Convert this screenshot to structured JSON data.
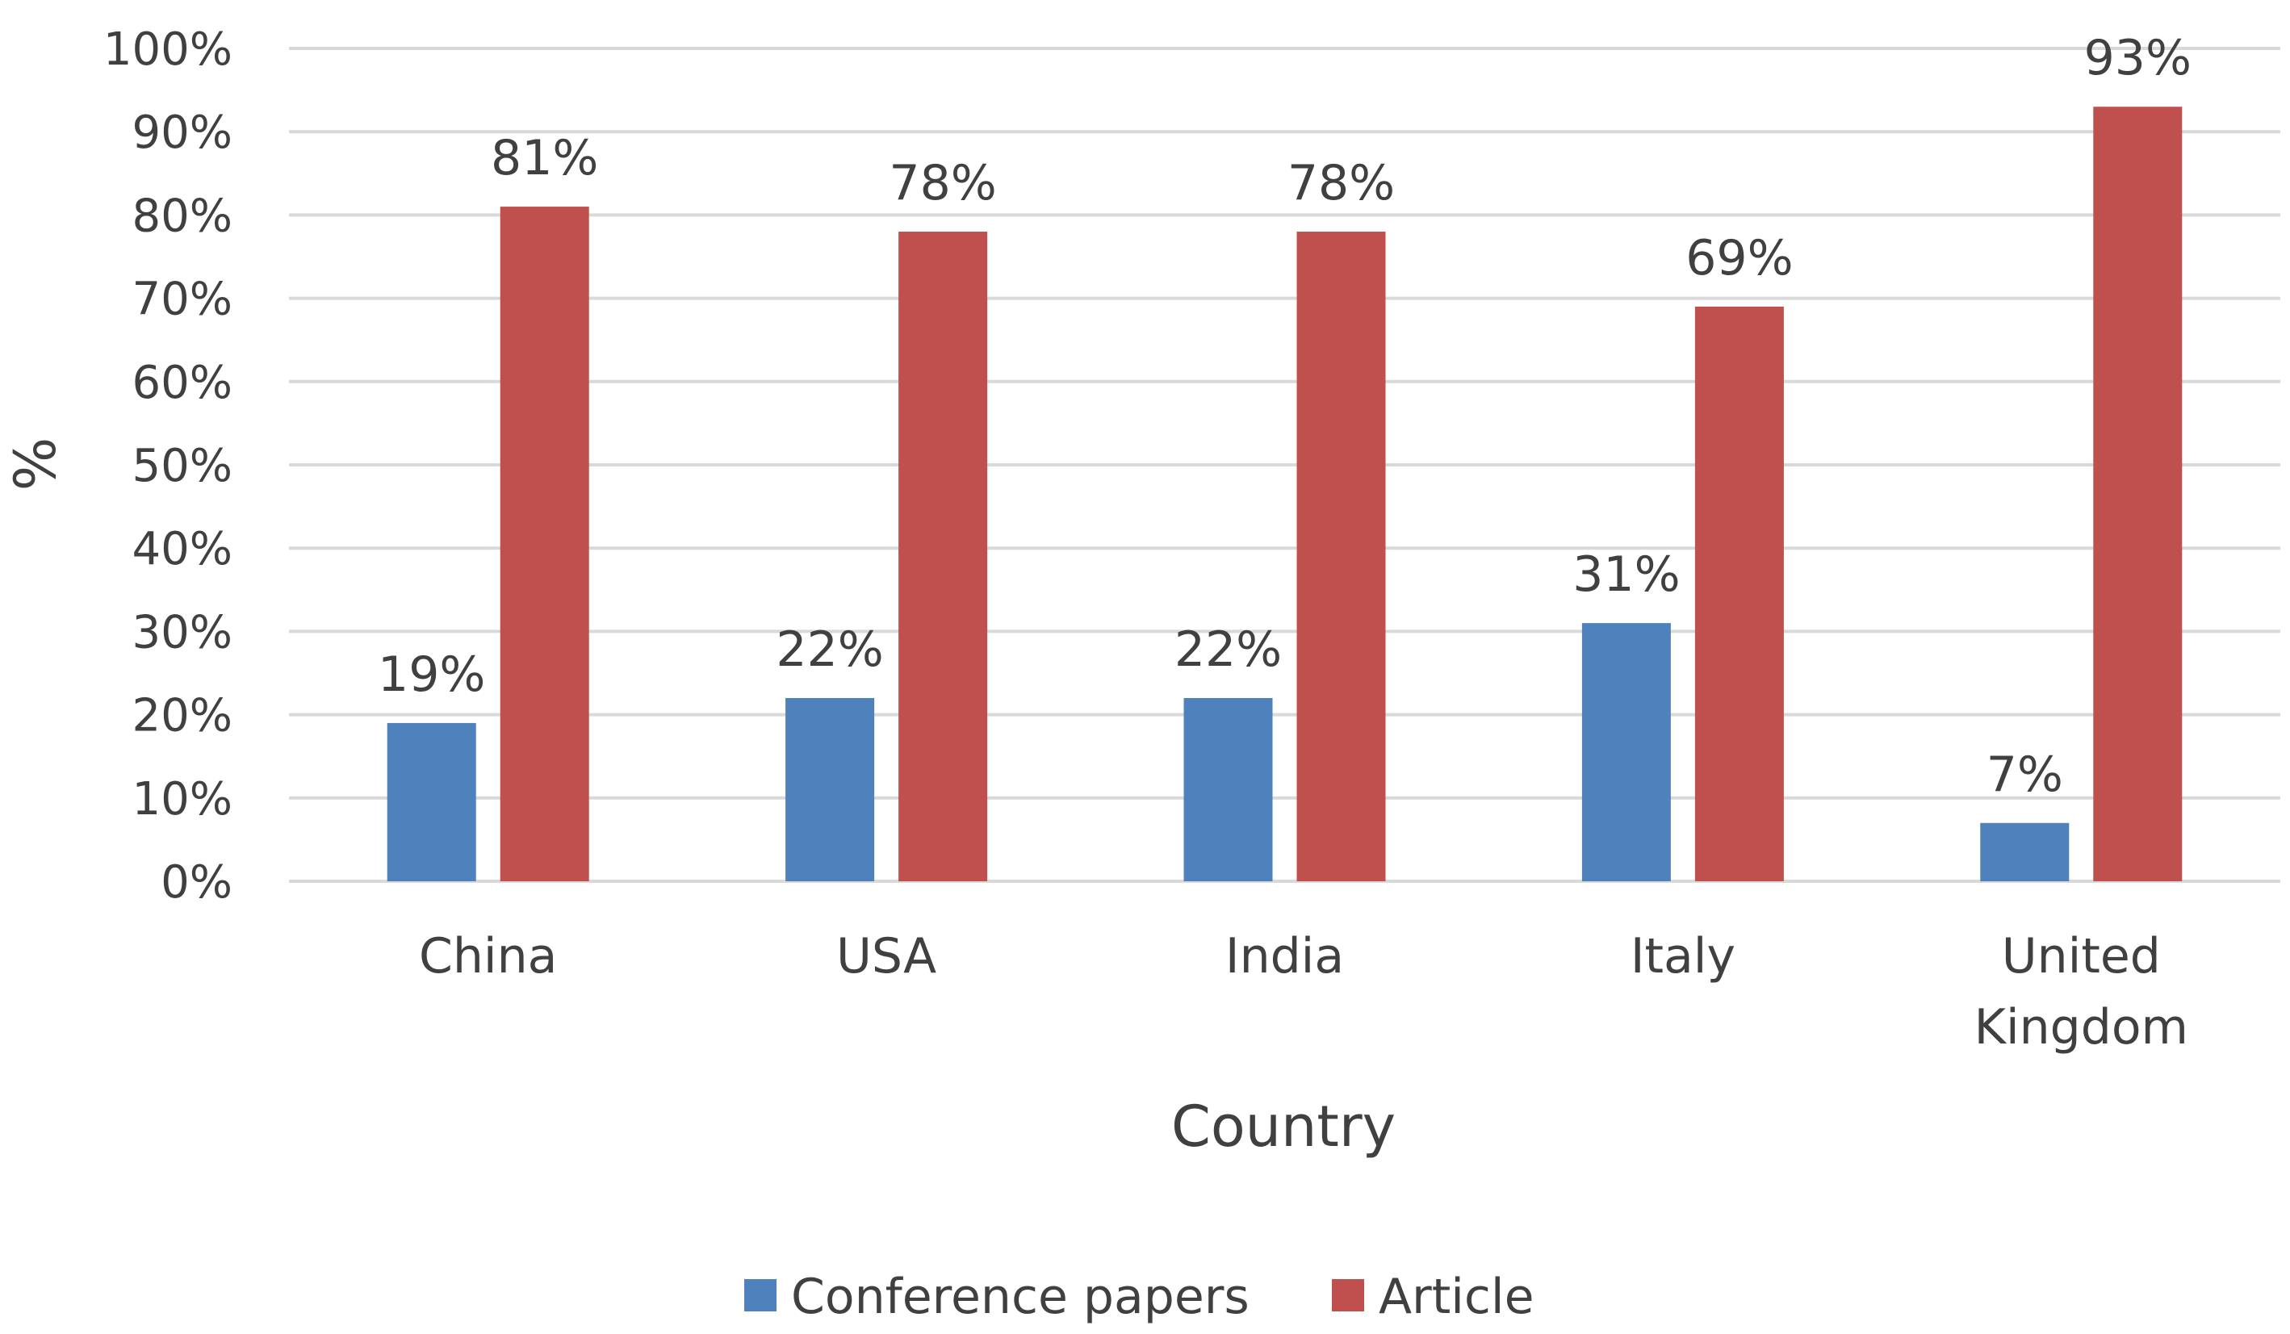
{
  "chart_data": {
    "type": "bar",
    "categories": [
      "China",
      "USA",
      "India",
      "Italy",
      "United Kingdom"
    ],
    "series": [
      {
        "name": "Conference papers",
        "values": [
          19,
          22,
          22,
          31,
          7
        ],
        "labels": [
          "19%",
          "22%",
          "22%",
          "31%",
          "7%"
        ],
        "color": "#4F81BD"
      },
      {
        "name": "Article",
        "values": [
          81,
          78,
          78,
          69,
          93
        ],
        "labels": [
          "81%",
          "78%",
          "78%",
          "69%",
          "93%"
        ],
        "color": "#C0504D"
      }
    ],
    "xlabel": "Country",
    "ylabel": "%",
    "ylim": [
      0,
      100
    ],
    "yticks": [
      "0%",
      "10%",
      "20%",
      "30%",
      "40%",
      "50%",
      "60%",
      "70%",
      "80%",
      "90%",
      "100%"
    ],
    "grid": true,
    "gridColor": "#D9D9D9",
    "legend": "bottom"
  }
}
